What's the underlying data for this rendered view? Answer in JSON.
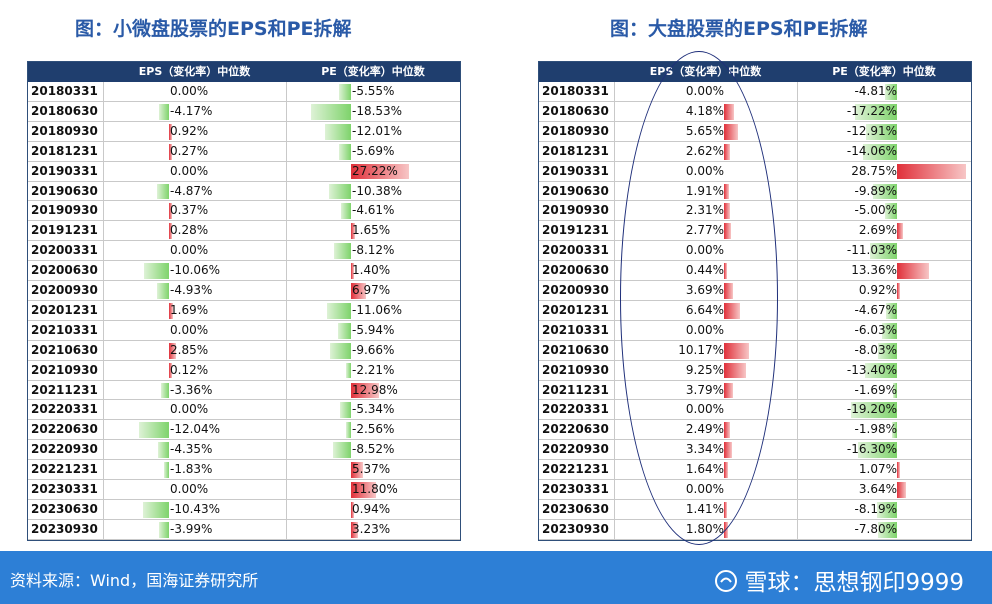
{
  "left": {
    "title": "图：小微盘股票的EPS和PE拆解",
    "headers": [
      "",
      "EPS（变化率）中位数",
      "PE（变化率）中位数"
    ],
    "rows": [
      [
        "20180331",
        "0.00%",
        "-5.55%"
      ],
      [
        "20180630",
        "-4.17%",
        "-18.53%"
      ],
      [
        "20180930",
        "0.92%",
        "-12.01%"
      ],
      [
        "20181231",
        "0.27%",
        "-5.69%"
      ],
      [
        "20190331",
        "0.00%",
        "27.22%"
      ],
      [
        "20190630",
        "-4.87%",
        "-10.38%"
      ],
      [
        "20190930",
        "0.37%",
        "-4.61%"
      ],
      [
        "20191231",
        "0.28%",
        "1.65%"
      ],
      [
        "20200331",
        "0.00%",
        "-8.12%"
      ],
      [
        "20200630",
        "-10.06%",
        "1.40%"
      ],
      [
        "20200930",
        "-4.93%",
        "6.97%"
      ],
      [
        "20201231",
        "1.69%",
        "-11.06%"
      ],
      [
        "20210331",
        "0.00%",
        "-5.94%"
      ],
      [
        "20210630",
        "2.85%",
        "-9.66%"
      ],
      [
        "20210930",
        "0.12%",
        "-2.21%"
      ],
      [
        "20211231",
        "-3.36%",
        "12.98%"
      ],
      [
        "20220331",
        "0.00%",
        "-5.34%"
      ],
      [
        "20220630",
        "-12.04%",
        "-2.56%"
      ],
      [
        "20220930",
        "-4.35%",
        "-8.52%"
      ],
      [
        "20221231",
        "-1.83%",
        "5.37%"
      ],
      [
        "20230331",
        "0.00%",
        "11.80%"
      ],
      [
        "20230630",
        "-10.43%",
        "0.94%"
      ],
      [
        "20230930",
        "-3.99%",
        "3.23%"
      ]
    ]
  },
  "right": {
    "title": "图：大盘股票的EPS和PE拆解",
    "headers": [
      "",
      "EPS（变化率）中位数",
      "PE（变化率）中位数"
    ],
    "rows": [
      [
        "20180331",
        "0.00%",
        "-4.81%"
      ],
      [
        "20180630",
        "4.18%",
        "-17.22%"
      ],
      [
        "20180930",
        "5.65%",
        "-12.91%"
      ],
      [
        "20181231",
        "2.62%",
        "-14.06%"
      ],
      [
        "20190331",
        "0.00%",
        "28.75%"
      ],
      [
        "20190630",
        "1.91%",
        "-9.89%"
      ],
      [
        "20190930",
        "2.31%",
        "-5.00%"
      ],
      [
        "20191231",
        "2.77%",
        "2.69%"
      ],
      [
        "20200331",
        "0.00%",
        "-11.03%"
      ],
      [
        "20200630",
        "0.44%",
        "13.36%"
      ],
      [
        "20200930",
        "3.69%",
        "0.92%"
      ],
      [
        "20201231",
        "6.64%",
        "-4.67%"
      ],
      [
        "20210331",
        "0.00%",
        "-6.03%"
      ],
      [
        "20210630",
        "10.17%",
        "-8.03%"
      ],
      [
        "20210930",
        "9.25%",
        "-13.40%"
      ],
      [
        "20211231",
        "3.79%",
        "-1.69%"
      ],
      [
        "20220331",
        "0.00%",
        "-19.20%"
      ],
      [
        "20220630",
        "2.49%",
        "-1.98%"
      ],
      [
        "20220930",
        "3.34%",
        "-16.30%"
      ],
      [
        "20221231",
        "1.64%",
        "1.07%"
      ],
      [
        "20230331",
        "0.00%",
        "3.64%"
      ],
      [
        "20230630",
        "1.41%",
        "-8.19%"
      ],
      [
        "20230930",
        "1.80%",
        "-7.80%"
      ]
    ]
  },
  "chart_data": [
    {
      "type": "table",
      "title": "图：小微盘股票的EPS和PE拆解",
      "categories": [
        "20180331",
        "20180630",
        "20180930",
        "20181231",
        "20190331",
        "20190630",
        "20190930",
        "20191231",
        "20200331",
        "20200630",
        "20200930",
        "20201231",
        "20210331",
        "20210630",
        "20210930",
        "20211231",
        "20220331",
        "20220630",
        "20220930",
        "20221231",
        "20230331",
        "20230630",
        "20230930"
      ],
      "series": [
        {
          "name": "EPS（变化率）中位数",
          "values": [
            0.0,
            -4.17,
            0.92,
            0.27,
            0.0,
            -4.87,
            0.37,
            0.28,
            0.0,
            -10.06,
            -4.93,
            1.69,
            0.0,
            2.85,
            0.12,
            -3.36,
            0.0,
            -12.04,
            -4.35,
            -1.83,
            0.0,
            -10.43,
            -3.99
          ]
        },
        {
          "name": "PE（变化率）中位数",
          "values": [
            -5.55,
            -18.53,
            -12.01,
            -5.69,
            27.22,
            -10.38,
            -4.61,
            1.65,
            -8.12,
            1.4,
            6.97,
            -11.06,
            -5.94,
            -9.66,
            -2.21,
            12.98,
            -5.34,
            -2.56,
            -8.52,
            5.37,
            11.8,
            0.94,
            3.23
          ]
        }
      ]
    },
    {
      "type": "table",
      "title": "图：大盘股票的EPS和PE拆解",
      "categories": [
        "20180331",
        "20180630",
        "20180930",
        "20181231",
        "20190331",
        "20190630",
        "20190930",
        "20191231",
        "20200331",
        "20200630",
        "20200930",
        "20201231",
        "20210331",
        "20210630",
        "20210930",
        "20211231",
        "20220331",
        "20220630",
        "20220930",
        "20221231",
        "20230331",
        "20230630",
        "20230930"
      ],
      "series": [
        {
          "name": "EPS（变化率）中位数",
          "values": [
            0.0,
            4.18,
            5.65,
            2.62,
            0.0,
            1.91,
            2.31,
            2.77,
            0.0,
            0.44,
            3.69,
            6.64,
            0.0,
            10.17,
            9.25,
            3.79,
            0.0,
            2.49,
            3.34,
            1.64,
            0.0,
            1.41,
            1.8
          ]
        },
        {
          "name": "PE（变化率）中位数",
          "values": [
            -4.81,
            -17.22,
            -12.91,
            -14.06,
            28.75,
            -9.89,
            -5.0,
            2.69,
            -11.03,
            13.36,
            0.92,
            -4.67,
            -6.03,
            -8.03,
            -13.4,
            -1.69,
            -19.2,
            -1.98,
            -16.3,
            1.07,
            3.64,
            -8.19,
            -7.8
          ]
        }
      ]
    }
  ],
  "footer": {
    "source": "资料来源：Wind，国海证券研究所",
    "watermark": "雪球：思想钢印9999"
  }
}
